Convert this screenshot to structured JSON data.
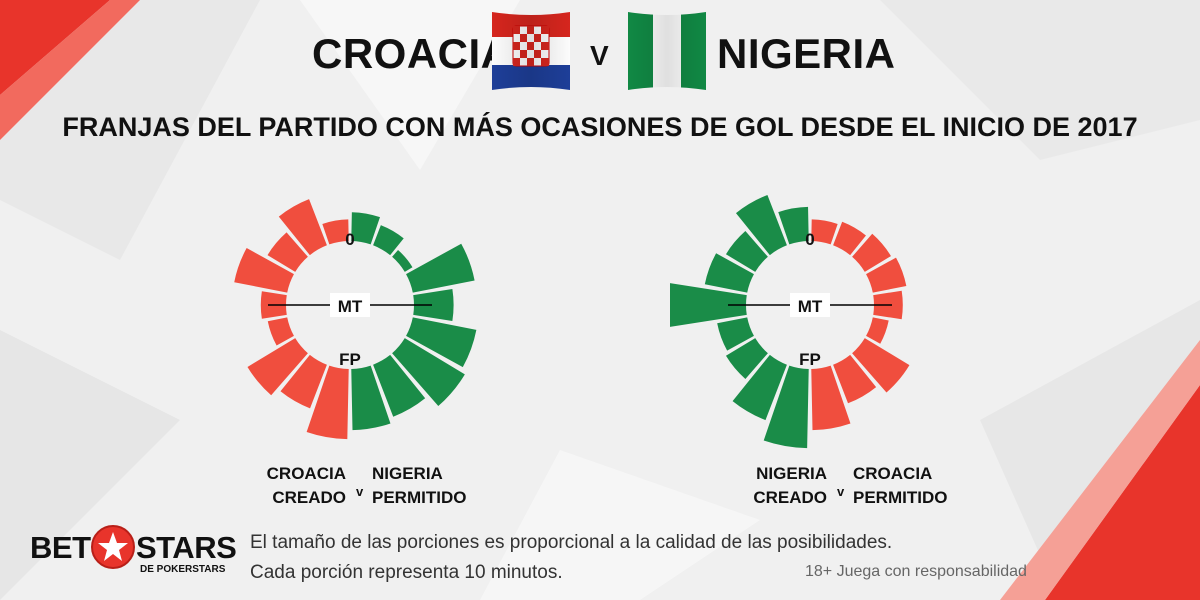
{
  "header": {
    "team_left": "CROACIA",
    "vs": "V",
    "team_right": "NIGERIA",
    "flag_left": "croatia-flag",
    "flag_right": "nigeria-flag"
  },
  "subtitle": "FRANJAS DEL PARTIDO CON MÁS OCASIONES DE GOL DESDE EL INICIO DE 2017",
  "colors": {
    "red": "#f04e3e",
    "green": "#1a8c48"
  },
  "chart_data": [
    {
      "type": "radial-bar",
      "labels": {
        "start": "0",
        "half": "MT",
        "end": "FP"
      },
      "segment_minutes": 10,
      "categories": [
        "0-10",
        "10-20",
        "20-30",
        "30-40",
        "40-50",
        "50-60",
        "60-70",
        "70-80",
        "80-90"
      ],
      "series": [
        {
          "side": "right",
          "color": "#1a8c48",
          "values": [
            32,
            24,
            10,
            70,
            44,
            72,
            78,
            62,
            68
          ]
        },
        {
          "side": "left",
          "color": "#f04e3e",
          "values": [
            24,
            55,
            36,
            60,
            28,
            22,
            62,
            52,
            78
          ]
        }
      ],
      "caption": {
        "left_line1": "CROACIA",
        "left_line2": "CREADO",
        "vs": "v",
        "right_line1": "NIGERIA",
        "right_line2": "PERMITIDO"
      }
    },
    {
      "type": "radial-bar",
      "labels": {
        "start": "0",
        "half": "MT",
        "end": "FP"
      },
      "segment_minutes": 10,
      "categories": [
        "0-10",
        "10-20",
        "20-30",
        "30-40",
        "40-50",
        "50-60",
        "60-70",
        "70-80",
        "80-90"
      ],
      "series": [
        {
          "side": "right",
          "color": "#f04e3e",
          "values": [
            24,
            28,
            34,
            38,
            32,
            18,
            58,
            46,
            68
          ]
        },
        {
          "side": "left",
          "color": "#1a8c48",
          "values": [
            38,
            60,
            38,
            48,
            92,
            34,
            38,
            66,
            88
          ]
        }
      ],
      "caption": {
        "left_line1": "NIGERIA",
        "left_line2": "CREADO",
        "vs": "v",
        "right_line1": "CROACIA",
        "right_line2": "PERMITIDO"
      }
    }
  ],
  "footer": {
    "logo_word_left": "BET",
    "logo_word_right": "STARS",
    "logo_sub": "DE POKERSTARS",
    "note_line1": "El tamaño de las porciones es proporcional a la calidad de las posibilidades.",
    "note_line2": "Cada porción representa 10 minutos.",
    "responsible": "18+ Juega con responsabilidad"
  }
}
